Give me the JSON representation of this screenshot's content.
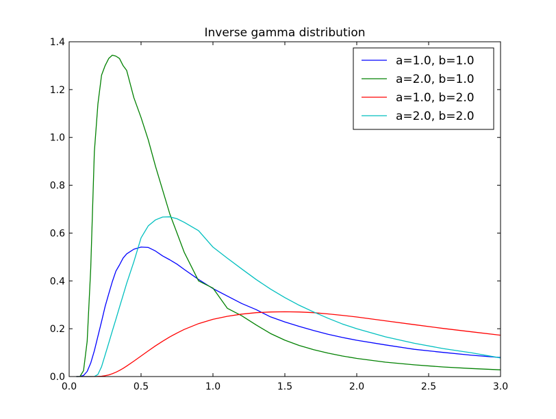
{
  "chart_data": {
    "type": "line",
    "title": "Inverse gamma distribution",
    "xlabel": "",
    "ylabel": "",
    "xlim": [
      0.0,
      3.0
    ],
    "ylim": [
      0.0,
      1.4
    ],
    "x_ticks": [
      "0.0",
      "0.5",
      "1.0",
      "1.5",
      "2.0",
      "2.5",
      "3.0"
    ],
    "y_ticks": [
      "0.0",
      "0.2",
      "0.4",
      "0.6",
      "0.8",
      "1.0",
      "1.2",
      "1.4"
    ],
    "grid": false,
    "legend_position": "top-right",
    "x": [
      0.05,
      0.075,
      0.1,
      0.125,
      0.15,
      0.175,
      0.2,
      0.225,
      0.25,
      0.275,
      0.3,
      0.325,
      0.35,
      0.375,
      0.4,
      0.45,
      0.5,
      0.55,
      0.6,
      0.65,
      0.7,
      0.75,
      0.8,
      0.9,
      1.0,
      1.1,
      1.2,
      1.3,
      1.4,
      1.5,
      1.6,
      1.7,
      1.8,
      1.9,
      2.0,
      2.2,
      2.4,
      2.6,
      2.8,
      3.0
    ],
    "series": [
      {
        "name": "a=1.0, b=1.0",
        "color": "#0000ff",
        "values": [
          0.0,
          0.0003,
          0.0045,
          0.0215,
          0.0565,
          0.1079,
          0.1684,
          0.2298,
          0.293,
          0.3458,
          0.3964,
          0.4413,
          0.4666,
          0.4955,
          0.5131,
          0.5324,
          0.5413,
          0.54,
          0.525,
          0.5045,
          0.488,
          0.47,
          0.448,
          0.406,
          0.3679,
          0.3367,
          0.3054,
          0.28,
          0.2496,
          0.2286,
          0.2096,
          0.1924,
          0.177,
          0.1634,
          0.1516,
          0.1324,
          0.114,
          0.101,
          0.089,
          0.0795
        ]
      },
      {
        "name": "a=2.0, b=1.0",
        "color": "#008000",
        "values": [
          0.0,
          0.0003,
          0.0245,
          0.1474,
          0.4522,
          0.94,
          1.14,
          1.26,
          1.3,
          1.33,
          1.344,
          1.34,
          1.33,
          1.3,
          1.28,
          1.166,
          1.083,
          0.99,
          0.88,
          0.78,
          0.68,
          0.6,
          0.52,
          0.4,
          0.37,
          0.2855,
          0.2542,
          0.216,
          0.1802,
          0.152,
          0.13,
          0.1125,
          0.098,
          0.086,
          0.076,
          0.06,
          0.049,
          0.04,
          0.0335,
          0.028
        ]
      },
      {
        "name": "a=1.0, b=2.0",
        "color": "#ff0000",
        "values": [
          0.0,
          0.0,
          0.0,
          0.0,
          0.0,
          0.0001,
          0.0005,
          0.0014,
          0.0034,
          0.0069,
          0.0117,
          0.0179,
          0.0255,
          0.0342,
          0.0437,
          0.0645,
          0.086,
          0.1074,
          0.1282,
          0.1477,
          0.1658,
          0.1822,
          0.1969,
          0.2212,
          0.2393,
          0.252,
          0.261,
          0.267,
          0.27,
          0.2707,
          0.27,
          0.267,
          0.262,
          0.256,
          0.249,
          0.233,
          0.217,
          0.2012,
          0.187,
          0.173
        ]
      },
      {
        "name": "a=2.0, b=2.0",
        "color": "#00bfbf",
        "values": [
          0.0,
          0.0,
          0.0,
          0.0,
          0.0,
          0.0002,
          0.009,
          0.0408,
          0.09,
          0.14,
          0.19,
          0.24,
          0.29,
          0.34,
          0.39,
          0.48,
          0.58,
          0.63,
          0.655,
          0.667,
          0.668,
          0.66,
          0.645,
          0.61,
          0.5413,
          0.495,
          0.45,
          0.406,
          0.366,
          0.33,
          0.298,
          0.27,
          0.244,
          0.22,
          0.2,
          0.166,
          0.139,
          0.117,
          0.099,
          0.078
        ]
      }
    ]
  }
}
